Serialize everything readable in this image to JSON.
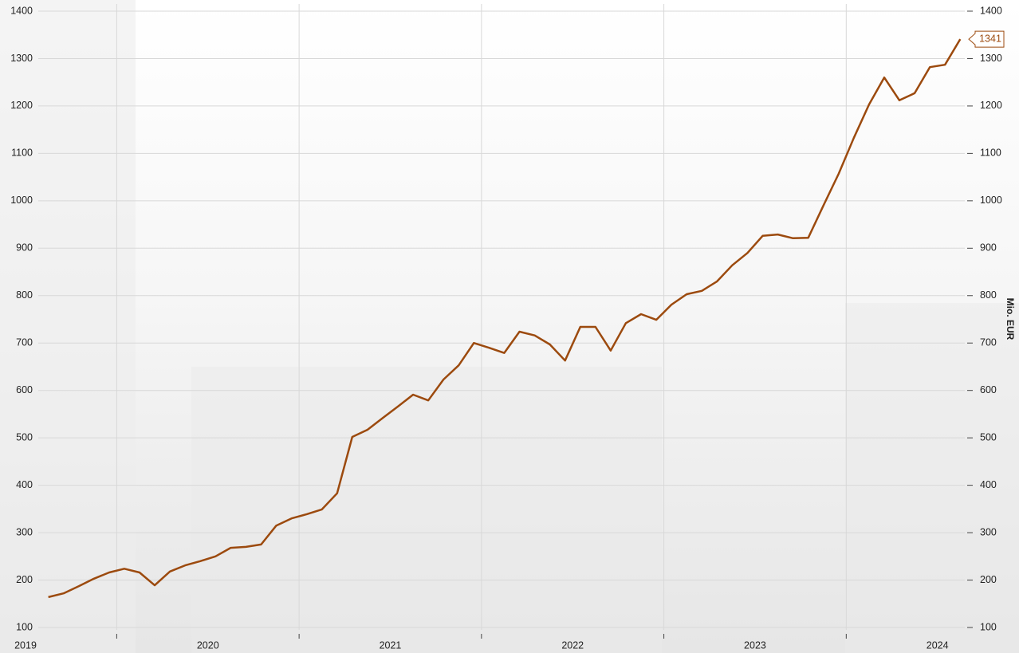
{
  "chart_data": {
    "type": "line",
    "x": [
      2019.625,
      2019.7083,
      2019.7917,
      2019.875,
      2019.9583,
      2020.0417,
      2020.125,
      2020.2083,
      2020.2917,
      2020.375,
      2020.4583,
      2020.5417,
      2020.625,
      2020.7083,
      2020.7917,
      2020.875,
      2020.9583,
      2021.0417,
      2021.125,
      2021.2083,
      2021.2917,
      2021.375,
      2021.4583,
      2021.5417,
      2021.625,
      2021.7083,
      2021.7917,
      2021.875,
      2021.9583,
      2022.0417,
      2022.125,
      2022.2083,
      2022.2917,
      2022.375,
      2022.4583,
      2022.5417,
      2022.625,
      2022.7083,
      2022.7917,
      2022.875,
      2022.9583,
      2023.0417,
      2023.125,
      2023.2083,
      2023.2917,
      2023.375,
      2023.4583,
      2023.5417,
      2023.625,
      2023.7083,
      2023.7917,
      2023.875,
      2023.9583,
      2024.0417,
      2024.125,
      2024.2083,
      2024.2917,
      2024.375,
      2024.4583,
      2024.5417,
      2024.625
    ],
    "series": [
      {
        "color": "#9c4a0e",
        "values": [
          164,
          172,
          187,
          203,
          216,
          224,
          216,
          189,
          218,
          231,
          240,
          250,
          268,
          270,
          275,
          315,
          330,
          339,
          349,
          383,
          502,
          517,
          542,
          566,
          591,
          579,
          623,
          653,
          700,
          690,
          679,
          724,
          716,
          697,
          663,
          734,
          734,
          684,
          742,
          761,
          749,
          781,
          803,
          810,
          830,
          864,
          890,
          926,
          929,
          921,
          922,
          990,
          1057,
          1133,
          1203,
          1260,
          1212,
          1227,
          1282,
          1287,
          1341
        ]
      }
    ],
    "xlim": [
      2019.36,
      2024.65
    ],
    "xgrid": [
      2020,
      2021,
      2022,
      2023,
      2024
    ],
    "xticks": [
      {
        "value": 2019.5,
        "label": "2019"
      },
      {
        "value": 2020.5,
        "label": "2020"
      },
      {
        "value": 2021.5,
        "label": "2021"
      },
      {
        "value": 2022.5,
        "label": "2022"
      },
      {
        "value": 2023.5,
        "label": "2023"
      },
      {
        "value": 2024.5,
        "label": "2024"
      }
    ],
    "ylim": [
      100,
      1400
    ],
    "yticks": [
      100,
      200,
      300,
      400,
      500,
      600,
      700,
      800,
      900,
      1000,
      1100,
      1200,
      1300,
      1400
    ],
    "y2lim": [
      100,
      1400
    ],
    "y2ticks": [
      100,
      200,
      300,
      400,
      500,
      600,
      700,
      800,
      900,
      1000,
      1100,
      1200,
      1300,
      1400
    ],
    "y2label": "Mio. EUR",
    "grid": true
  }
}
